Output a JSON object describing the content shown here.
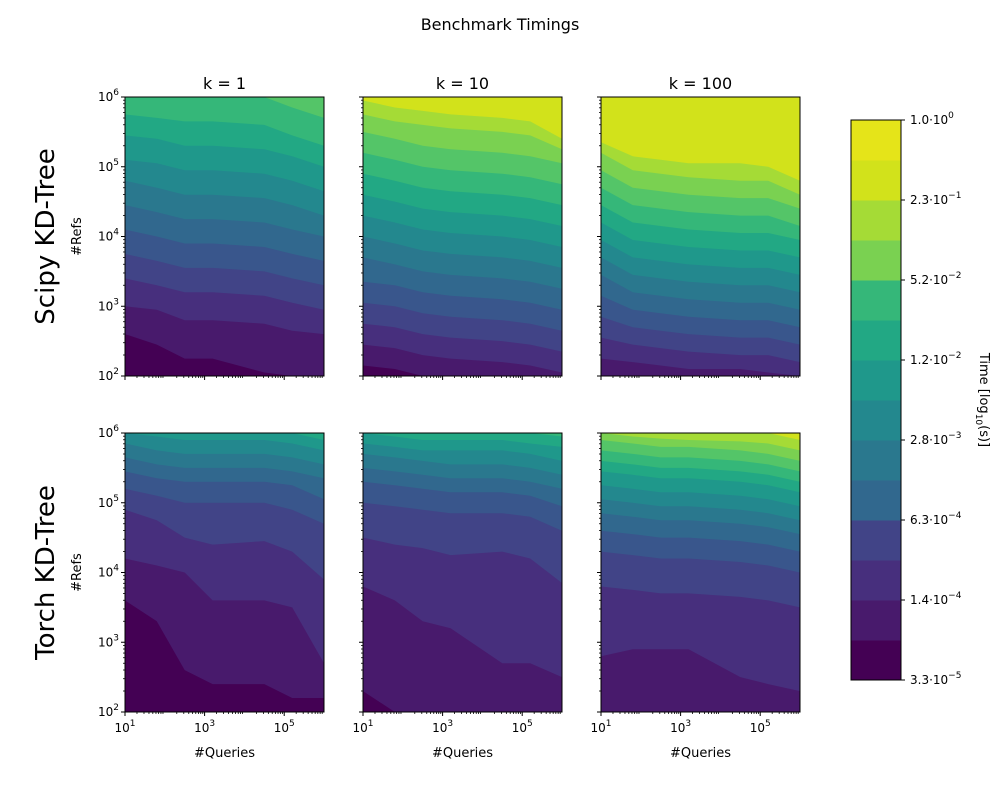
{
  "chart_data": {
    "type": "contour",
    "title": "Benchmark Timings",
    "xlabel": "#Queries",
    "ylabel": "#Refs",
    "x_scale": "log",
    "y_scale": "log",
    "xlim": [
      10,
      1000000
    ],
    "ylim": [
      100,
      1000000
    ],
    "x_ticks": [
      {
        "base": "10",
        "exp": "1"
      },
      {
        "base": "10",
        "exp": "3"
      },
      {
        "base": "10",
        "exp": "5"
      }
    ],
    "y_ticks": [
      {
        "base": "10",
        "exp": "2"
      },
      {
        "base": "10",
        "exp": "3"
      },
      {
        "base": "10",
        "exp": "4"
      },
      {
        "base": "10",
        "exp": "5"
      },
      {
        "base": "10",
        "exp": "6"
      }
    ],
    "columns": [
      "k = 1",
      "k = 10",
      "k = 100"
    ],
    "rows": [
      "Scipy KD-Tree",
      "Torch KD-Tree"
    ],
    "colorbar": {
      "label_main": "Time [log",
      "label_sub": "10",
      "label_end": "(s)]",
      "ticks": [
        {
          "mant": "1.0",
          "exp": "0"
        },
        {
          "mant": "2.3",
          "exp": "−1"
        },
        {
          "mant": "5.2",
          "exp": "−2"
        },
        {
          "mant": "1.2",
          "exp": "−2"
        },
        {
          "mant": "2.8",
          "exp": "−3"
        },
        {
          "mant": "6.3",
          "exp": "−4"
        },
        {
          "mant": "1.4",
          "exp": "−4"
        },
        {
          "mant": "3.3",
          "exp": "−5"
        }
      ],
      "range_log10": [
        -4.48,
        0.0
      ],
      "levels": 14,
      "colors": [
        "#440154",
        "#481a6c",
        "#472f7d",
        "#414487",
        "#39568c",
        "#31688e",
        "#2a788e",
        "#23888e",
        "#1f988b",
        "#22a884",
        "#35b779",
        "#54c568",
        "#7ad151",
        "#a5db36",
        "#d2e21b",
        "#e5e419"
      ]
    },
    "panels": [
      {
        "row": 0,
        "col": 0,
        "levels": [
          [
            2.6,
            2.45,
            2.25,
            2.25,
            2.05,
            1.85,
            1.75
          ],
          [
            3.0,
            2.95,
            2.8,
            2.8,
            2.75,
            2.65,
            2.6
          ],
          [
            3.4,
            3.3,
            3.2,
            3.2,
            3.15,
            3.05,
            2.95
          ],
          [
            3.75,
            3.65,
            3.55,
            3.55,
            3.5,
            3.4,
            3.3
          ],
          [
            4.1,
            4.0,
            3.9,
            3.9,
            3.85,
            3.75,
            3.65
          ],
          [
            4.45,
            4.35,
            4.25,
            4.25,
            4.2,
            4.1,
            4.0
          ],
          [
            4.8,
            4.7,
            4.6,
            4.6,
            4.55,
            4.45,
            4.3
          ],
          [
            5.1,
            5.05,
            4.95,
            4.95,
            4.9,
            4.8,
            4.65
          ],
          [
            5.45,
            5.4,
            5.3,
            5.3,
            5.25,
            5.15,
            5.0
          ],
          [
            5.75,
            5.7,
            5.65,
            5.65,
            5.6,
            5.45,
            5.3
          ],
          [
            6.0,
            6.0,
            6.0,
            6.0,
            6.0,
            5.85,
            5.7
          ],
          [
            6.0,
            6.0,
            6.0,
            6.0,
            6.0,
            6.0,
            6.0
          ],
          [
            6.0,
            6.0,
            6.0,
            6.0,
            6.0,
            6.0,
            6.0
          ],
          [
            6.0,
            6.0,
            6.0,
            6.0,
            6.0,
            6.0,
            6.0
          ]
        ]
      },
      {
        "row": 0,
        "col": 1,
        "levels": [
          [
            2.15,
            2.1,
            2.0,
            1.95,
            1.9,
            1.85,
            1.8
          ],
          [
            2.45,
            2.4,
            2.3,
            2.25,
            2.2,
            2.15,
            2.05
          ],
          [
            2.75,
            2.7,
            2.6,
            2.55,
            2.5,
            2.45,
            2.35
          ],
          [
            3.05,
            3.0,
            2.9,
            2.85,
            2.8,
            2.75,
            2.65
          ],
          [
            3.35,
            3.3,
            3.2,
            3.15,
            3.1,
            3.05,
            2.95
          ],
          [
            3.7,
            3.6,
            3.5,
            3.45,
            3.4,
            3.35,
            3.25
          ],
          [
            4.0,
            3.9,
            3.8,
            3.75,
            3.7,
            3.65,
            3.55
          ],
          [
            4.3,
            4.2,
            4.1,
            4.05,
            4.0,
            3.95,
            3.85
          ],
          [
            4.6,
            4.5,
            4.4,
            4.35,
            4.3,
            4.25,
            4.15
          ],
          [
            4.9,
            4.8,
            4.7,
            4.65,
            4.6,
            4.55,
            4.45
          ],
          [
            5.2,
            5.1,
            5.0,
            4.95,
            4.9,
            4.85,
            4.75
          ],
          [
            5.5,
            5.4,
            5.3,
            5.25,
            5.2,
            5.15,
            5.05
          ],
          [
            5.75,
            5.65,
            5.6,
            5.55,
            5.5,
            5.45,
            5.25
          ],
          [
            5.95,
            5.85,
            5.8,
            5.75,
            5.7,
            5.65,
            5.4
          ]
        ]
      },
      {
        "row": 0,
        "col": 2,
        "levels": [
          [
            2.0,
            1.95,
            1.9,
            1.85,
            1.85,
            1.8,
            1.75
          ],
          [
            2.25,
            2.2,
            2.15,
            2.1,
            2.1,
            2.05,
            2.0
          ],
          [
            2.55,
            2.45,
            2.4,
            2.35,
            2.3,
            2.3,
            2.2
          ],
          [
            2.85,
            2.7,
            2.65,
            2.6,
            2.55,
            2.55,
            2.45
          ],
          [
            3.15,
            2.95,
            2.9,
            2.85,
            2.8,
            2.8,
            2.7
          ],
          [
            3.45,
            3.2,
            3.15,
            3.1,
            3.05,
            3.05,
            2.95
          ],
          [
            3.7,
            3.45,
            3.4,
            3.35,
            3.3,
            3.3,
            3.2
          ],
          [
            3.95,
            3.7,
            3.65,
            3.6,
            3.55,
            3.55,
            3.45
          ],
          [
            4.2,
            3.95,
            3.9,
            3.85,
            3.8,
            3.8,
            3.7
          ],
          [
            4.45,
            4.2,
            4.15,
            4.1,
            4.05,
            4.05,
            3.95
          ],
          [
            4.7,
            4.45,
            4.4,
            4.35,
            4.3,
            4.3,
            4.15
          ],
          [
            4.95,
            4.7,
            4.65,
            4.6,
            4.55,
            4.55,
            4.4
          ],
          [
            5.2,
            4.95,
            4.9,
            4.85,
            4.8,
            4.8,
            4.6
          ],
          [
            5.35,
            5.15,
            5.1,
            5.05,
            5.05,
            5.0,
            4.8
          ]
        ]
      },
      {
        "row": 1,
        "col": 0,
        "levels": [
          [
            3.6,
            3.3,
            2.6,
            2.4,
            2.4,
            2.2,
            2.2
          ],
          [
            4.2,
            4.1,
            4.0,
            3.6,
            3.6,
            3.5,
            2.7
          ],
          [
            4.9,
            4.75,
            4.5,
            4.4,
            4.45,
            4.3,
            3.9
          ],
          [
            5.2,
            5.1,
            5.0,
            5.0,
            5.0,
            4.9,
            4.7
          ],
          [
            5.45,
            5.35,
            5.3,
            5.3,
            5.3,
            5.25,
            5.05
          ],
          [
            5.65,
            5.55,
            5.5,
            5.5,
            5.5,
            5.45,
            5.35
          ],
          [
            5.85,
            5.75,
            5.7,
            5.7,
            5.7,
            5.65,
            5.55
          ],
          [
            6.0,
            5.95,
            5.9,
            5.9,
            5.9,
            5.85,
            5.75
          ],
          [
            6.0,
            6.0,
            6.0,
            6.0,
            6.0,
            6.0,
            5.9
          ],
          [
            6.0,
            6.0,
            6.0,
            6.0,
            6.0,
            6.0,
            6.0
          ],
          [
            6.0,
            6.0,
            6.0,
            6.0,
            6.0,
            6.0,
            6.0
          ],
          [
            6.0,
            6.0,
            6.0,
            6.0,
            6.0,
            6.0,
            6.0
          ],
          [
            6.0,
            6.0,
            6.0,
            6.0,
            6.0,
            6.0,
            6.0
          ],
          [
            6.0,
            6.0,
            6.0,
            6.0,
            6.0,
            6.0,
            6.0
          ]
        ]
      },
      {
        "row": 1,
        "col": 1,
        "levels": [
          [
            2.3,
            2.0,
            2.0,
            2.0,
            2.0,
            2.0,
            2.0
          ],
          [
            3.8,
            3.6,
            3.3,
            3.2,
            2.7,
            2.7,
            2.5
          ],
          [
            4.5,
            4.4,
            4.35,
            4.25,
            4.3,
            4.2,
            3.85
          ],
          [
            5.0,
            4.95,
            4.9,
            4.85,
            4.85,
            4.8,
            4.6
          ],
          [
            5.3,
            5.25,
            5.2,
            5.15,
            5.15,
            5.1,
            4.95
          ],
          [
            5.5,
            5.45,
            5.4,
            5.35,
            5.35,
            5.3,
            5.2
          ],
          [
            5.7,
            5.65,
            5.6,
            5.55,
            5.55,
            5.5,
            5.4
          ],
          [
            5.85,
            5.8,
            5.75,
            5.75,
            5.75,
            5.7,
            5.6
          ],
          [
            6.0,
            5.95,
            5.9,
            5.9,
            5.9,
            5.85,
            5.8
          ],
          [
            6.0,
            6.0,
            6.0,
            6.0,
            6.0,
            6.0,
            5.95
          ],
          [
            6.0,
            6.0,
            6.0,
            6.0,
            6.0,
            6.0,
            6.0
          ],
          [
            6.0,
            6.0,
            6.0,
            6.0,
            6.0,
            6.0,
            6.0
          ],
          [
            6.0,
            6.0,
            6.0,
            6.0,
            6.0,
            6.0,
            6.0
          ],
          [
            6.0,
            6.0,
            6.0,
            6.0,
            6.0,
            6.0,
            6.0
          ]
        ]
      },
      {
        "row": 1,
        "col": 2,
        "levels": [
          [
            2.0,
            2.0,
            2.0,
            2.0,
            2.0,
            2.0,
            2.0
          ],
          [
            2.8,
            2.9,
            2.9,
            2.9,
            2.5,
            2.4,
            2.3
          ],
          [
            3.8,
            3.75,
            3.7,
            3.7,
            3.65,
            3.6,
            3.5
          ],
          [
            4.3,
            4.25,
            4.2,
            4.2,
            4.15,
            4.1,
            4.0
          ],
          [
            4.6,
            4.55,
            4.5,
            4.5,
            4.45,
            4.4,
            4.3
          ],
          [
            4.85,
            4.8,
            4.75,
            4.75,
            4.7,
            4.65,
            4.55
          ],
          [
            5.05,
            5.0,
            4.95,
            4.95,
            4.9,
            4.85,
            4.75
          ],
          [
            5.25,
            5.2,
            5.15,
            5.15,
            5.1,
            5.05,
            4.95
          ],
          [
            5.45,
            5.4,
            5.35,
            5.35,
            5.3,
            5.25,
            5.15
          ],
          [
            5.6,
            5.55,
            5.5,
            5.5,
            5.45,
            5.4,
            5.3
          ],
          [
            5.75,
            5.7,
            5.65,
            5.65,
            5.6,
            5.55,
            5.45
          ],
          [
            5.9,
            5.85,
            5.8,
            5.8,
            5.75,
            5.7,
            5.6
          ],
          [
            6.0,
            5.95,
            5.92,
            5.9,
            5.88,
            5.85,
            5.75
          ],
          [
            6.0,
            6.0,
            6.0,
            6.0,
            6.0,
            6.0,
            5.9
          ]
        ]
      }
    ]
  }
}
